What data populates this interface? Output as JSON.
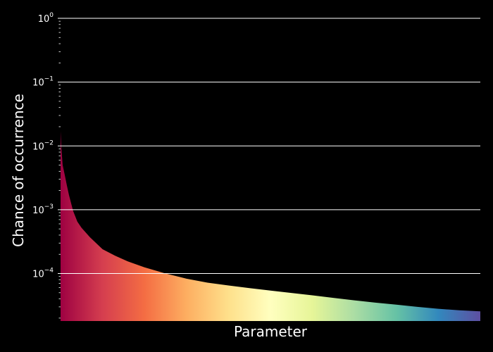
{
  "chart_data": {
    "type": "area",
    "title": "",
    "xlabel": "Parameter",
    "ylabel": "Chance of occurrence",
    "yscale": "log",
    "ylim": [
      1.8e-05,
      1
    ],
    "xlim": [
      0,
      1
    ],
    "x_ticks_visible": false,
    "grid": "horizontal",
    "legend": "none",
    "background_color": "#000000",
    "grid_color": "#ffffff",
    "y_ticks": [
      {
        "value": 1,
        "base": "10",
        "exp": "0"
      },
      {
        "value": 0.1,
        "base": "10",
        "exp": "−1"
      },
      {
        "value": 0.01,
        "base": "10",
        "exp": "−2"
      },
      {
        "value": 0.001,
        "base": "10",
        "exp": "−3"
      },
      {
        "value": 0.0001,
        "base": "10",
        "exp": "−4"
      }
    ],
    "colormap": "Spectral",
    "colormap_stops": [
      "#9e0142",
      "#d53e4f",
      "#f46d43",
      "#fdae61",
      "#fee08b",
      "#ffffbf",
      "#e6f598",
      "#abdda4",
      "#66c2a5",
      "#3288bd",
      "#5e4fa2"
    ],
    "x": [
      0.0,
      0.002,
      0.005,
      0.01,
      0.015,
      0.02,
      0.03,
      0.04,
      0.05,
      0.07,
      0.1,
      0.13,
      0.16,
      0.2,
      0.25,
      0.3,
      0.35,
      0.4,
      0.45,
      0.5,
      0.55,
      0.6,
      0.65,
      0.7,
      0.75,
      0.8,
      0.85,
      0.9,
      0.95,
      1.0
    ],
    "values": [
      0.017,
      0.009,
      0.005,
      0.0035,
      0.0024,
      0.0017,
      0.00095,
      0.00065,
      0.00052,
      0.00037,
      0.00024,
      0.00019,
      0.000155,
      0.000125,
      0.0001,
      8.3e-05,
      7.2e-05,
      6.5e-05,
      5.9e-05,
      5.4e-05,
      4.95e-05,
      4.55e-05,
      4.15e-05,
      3.8e-05,
      3.5e-05,
      3.25e-05,
      3e-05,
      2.8e-05,
      2.65e-05,
      2.55e-05
    ]
  }
}
